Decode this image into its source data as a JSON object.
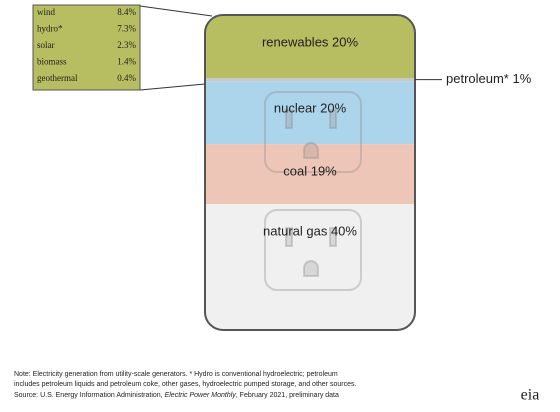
{
  "chart_data": {
    "type": "outlet",
    "values": [
      20,
      1,
      20,
      19,
      40
    ],
    "value_labels": [
      "renewables 20%",
      "petroleum* 1%",
      "nuclear 20%",
      "coal 19%",
      "natural gas 40%"
    ],
    "colors": [
      "#b7bd61",
      "#c9c9c9",
      "#acd4ea",
      "#eec6b8",
      "#f0f0f0"
    ],
    "detail": {
      "categories": [
        "wind",
        "hydro*",
        "solar",
        "biomass",
        "geothermal"
      ],
      "values": [
        8.4,
        7.3,
        2.3,
        1.4,
        0.4
      ],
      "value_labels": [
        "8.4%",
        "7.3%",
        "2.3%",
        "1.4%",
        "0.4%"
      ],
      "color": "#b7bd61"
    },
    "notes": [
      "Note: Electricity generation from utility-scale generators. * Hydro is conventional hydroelectric; petroleum",
      "includes petroleum liquids and petroleum coke, other gases, hydroelectric pumped storage, and other sources."
    ],
    "source": [
      "Source: U.S. Energy Information Administration, ",
      "Electric Power Monthly",
      ", February 2021, preliminary data"
    ],
    "logo": "eia"
  }
}
